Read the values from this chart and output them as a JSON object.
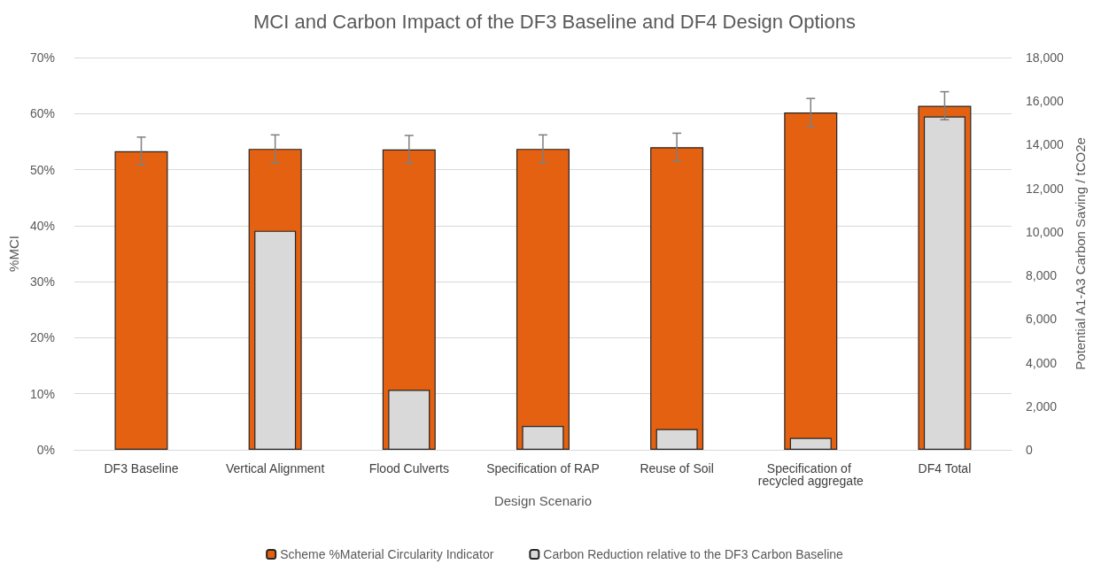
{
  "chart_data": {
    "type": "bar",
    "title": "MCI and Carbon Impact of the DF3 Baseline and DF4 Design Options",
    "xlabel": "Design Scenario",
    "ylabel": "%MCI",
    "y2label": "Potential A1-A3 Carbon Saving / tCO2e",
    "categories": [
      "DF3 Baseline",
      "Vertical Alignment",
      "Flood Culverts",
      "Specification of RAP",
      "Reuse of Soil",
      "Specification of recycled aggregate",
      "DF4 Total"
    ],
    "series": [
      {
        "name": "Scheme %Material Circularity Indicator",
        "color": "#e36110",
        "values": [
          53.3,
          53.7,
          53.6,
          53.7,
          54.0,
          60.2,
          61.4
        ],
        "errors": [
          2.5,
          2.5,
          2.5,
          2.5,
          2.5,
          2.5,
          2.5
        ]
      },
      {
        "name": "Carbon Reduction relative to the DF3 Carbon Baseline",
        "color": "#d9d9d9",
        "axis": "y2",
        "values": [
          null,
          10050,
          2750,
          1100,
          950,
          550,
          15300
        ]
      }
    ],
    "ylim": [
      0,
      70
    ],
    "yticks": [
      {
        "value": 0,
        "label": "0%"
      },
      {
        "value": 10,
        "label": "10%"
      },
      {
        "value": 20,
        "label": "20%"
      },
      {
        "value": 30,
        "label": "30%"
      },
      {
        "value": 40,
        "label": "40%"
      },
      {
        "value": 50,
        "label": "50%"
      },
      {
        "value": 60,
        "label": "60%"
      },
      {
        "value": 70,
        "label": "70%"
      }
    ],
    "y2lim": [
      0,
      18000
    ],
    "y2ticks": [
      0,
      {
        "value": 2000,
        "label": "2,000"
      },
      {
        "value": 4000,
        "label": "4,000"
      },
      {
        "value": 6000,
        "label": "6,000"
      },
      {
        "value": 8000,
        "label": "8,000"
      },
      {
        "value": 10000,
        "label": "10,000"
      },
      {
        "value": 12000,
        "label": "12,000"
      },
      {
        "value": 14000,
        "label": "14,000"
      },
      {
        "value": 16000,
        "label": "16,000"
      },
      {
        "value": 18000,
        "label": "18,000"
      }
    ],
    "grid": "y",
    "legend": "bottom"
  }
}
